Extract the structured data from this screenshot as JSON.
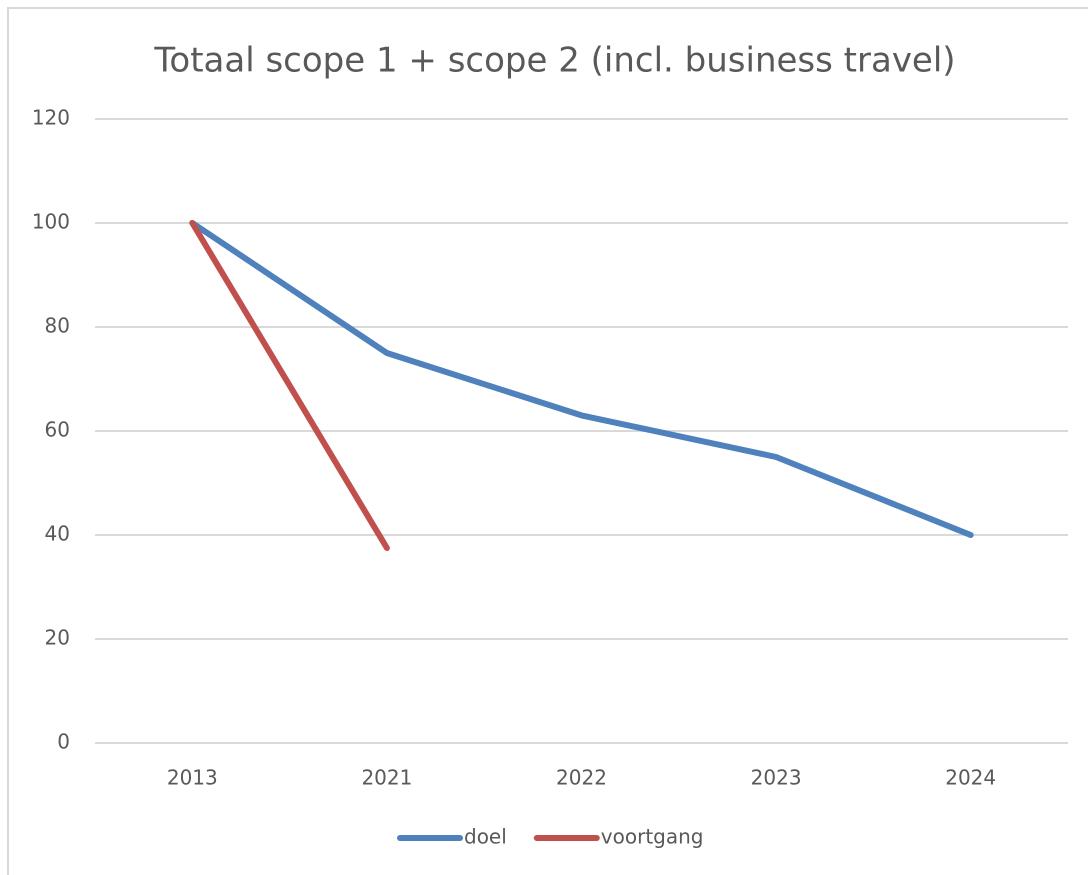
{
  "chart_data": {
    "type": "line",
    "title": "Totaal scope 1 + scope 2 (incl. business travel)",
    "categories": [
      "2013",
      "2021",
      "2022",
      "2023",
      "2024"
    ],
    "series": [
      {
        "name": "doel",
        "color": "#4f81bd",
        "values": [
          100,
          75,
          63,
          55,
          40
        ]
      },
      {
        "name": "voortgang",
        "color": "#c0504d",
        "values": [
          100,
          37.5,
          null,
          null,
          null
        ]
      }
    ],
    "ylim": [
      0,
      120
    ],
    "yticks": [
      0,
      20,
      40,
      60,
      80,
      100,
      120
    ],
    "grid": true,
    "legend": "bottom"
  }
}
